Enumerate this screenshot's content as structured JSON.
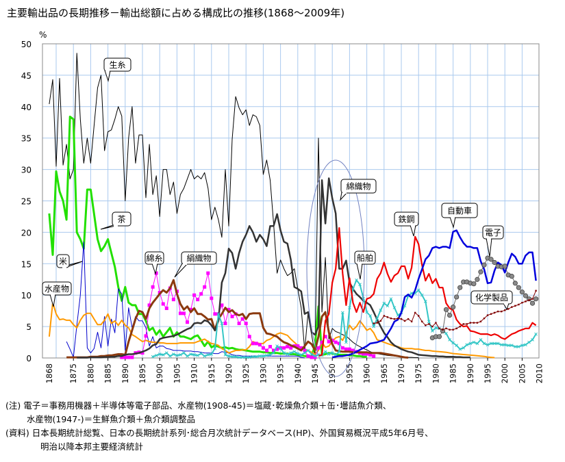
{
  "title": "主要輸出品の長期推移－輸出総額に占める構成比の推移(1868～2009年)",
  "notes": {
    "note_line1": "(注) 電子＝事務用機器＋半導体等電子部品、水産物(1908-45)＝塩蔵･乾燥魚介類＋缶･壜詰魚介類、",
    "note_line2": "水産物(1947-)＝生鮮魚介類＋魚介類調整品",
    "source_line1": "(資料) 日本長期統計総覧、日本の長期統計系列･総合月次統計データベース(HP)、外国貿易概況平成5年6月号、",
    "source_line2": "明治以降本邦主要経済統計"
  },
  "chart_data": {
    "type": "line",
    "title": "主要輸出品の長期推移－輸出総額に占める構成比の推移(1868～2009年)",
    "ylabel": "%",
    "xlabel": "",
    "ylim": [
      0,
      50
    ],
    "xlim": [
      1866,
      2010
    ],
    "yticks": [
      0,
      5,
      10,
      15,
      20,
      25,
      30,
      35,
      40,
      45,
      50
    ],
    "xtick_labels": [
      "1868",
      "1875",
      "1880",
      "1885",
      "1890",
      "1895",
      "1900",
      "1905",
      "1910",
      "1915",
      "1920",
      "1925",
      "1930",
      "1935",
      "1940",
      "1945",
      "1950",
      "1955",
      "1960",
      "1965",
      "1970",
      "1975",
      "1980",
      "1985",
      "1990",
      "1995",
      "2000",
      "2005",
      "2010"
    ],
    "grid": true,
    "legend": "callout labels on lines",
    "series": [
      {
        "name": "生糸",
        "color": "#000000",
        "start": 1868,
        "values": [
          40.4,
          44.3,
          30.5,
          44.5,
          30.7,
          34,
          28.5,
          30,
          48.5,
          38,
          31,
          35,
          31,
          37,
          43,
          45,
          33,
          36,
          36.3,
          38,
          40,
          38.5,
          25,
          35,
          40,
          31,
          35.5,
          35.5,
          25.5,
          34,
          26,
          29,
          22.5,
          30,
          30,
          26,
          28,
          23,
          26,
          27,
          28.5,
          30,
          28.5,
          29,
          28.5,
          29.5,
          27,
          22,
          24,
          22,
          19.2,
          30,
          21,
          34.8,
          41.6,
          39.8,
          38.7,
          39.5,
          37,
          38.7,
          38.4,
          37,
          29.2,
          31.5,
          28.3,
          21.4,
          13.5,
          15.6,
          14.2,
          13.1,
          13.5,
          14.2,
          11,
          8,
          1.2,
          7.3,
          3.7,
          0.5,
          35,
          7.3,
          16,
          3,
          4.7,
          4.2,
          4,
          3.7,
          3.5,
          3,
          2.5,
          2.1,
          1.8,
          1.5,
          1.3,
          1,
          0.8,
          0.7,
          0.6,
          0.5,
          0.4,
          0.35,
          0.3,
          0.25,
          0.2,
          0.15,
          0.1,
          0.1,
          0.05,
          0.05
        ]
      },
      {
        "name": "茶",
        "color": "#22e000",
        "start": 1868,
        "values": [
          23,
          16.4,
          29.7,
          26.5,
          25,
          22,
          38.4,
          38,
          20,
          18.9,
          17.4,
          26.8,
          26.8,
          22.9,
          18.9,
          17,
          17.8,
          18.9,
          16.7,
          14.5,
          11.3,
          9.1,
          11.3,
          8.8,
          8.4,
          8.4,
          7,
          7,
          5.9,
          4.4,
          4.8,
          3.7,
          4.4,
          3.4,
          4.1,
          4.8,
          3.4,
          4.1,
          3.4,
          3.4,
          3.2,
          3,
          3.4,
          3.6,
          2.8,
          1.9,
          2.6,
          1.7,
          2,
          1.8,
          1.6,
          1.7,
          1.5,
          1.6,
          1.4,
          1.3,
          1.3,
          1.2,
          1.1,
          1,
          1,
          1,
          0.9,
          0.9,
          0.8,
          0.8,
          0.8,
          0.7,
          0.7,
          0.7,
          0.6,
          0.6,
          0.5,
          0.4,
          0.3,
          0.3,
          0.3,
          2,
          8.2,
          0.5,
          0.6,
          0.8,
          0.7,
          0.6,
          0.5,
          0.5,
          0.5,
          0.4,
          0.4,
          0.3,
          0.3,
          0.2,
          0.2
        ]
      },
      {
        "name": "米",
        "color": "#0000cc",
        "start": 1873,
        "values": [
          2.6,
          1.4,
          0.1,
          5.2,
          10,
          18.5,
          1.6,
          0.8,
          1.5,
          4.1,
          1.6,
          6.6,
          1.9,
          6.2,
          4,
          11,
          10.2,
          1.2,
          8,
          4.8,
          6.6,
          5.9,
          5.9,
          4.8,
          1.9,
          3.4,
          1.6,
          1.9,
          1.9,
          1.5,
          1.4,
          1.2,
          1.2,
          1.2,
          1.1,
          1.1,
          1.1,
          1,
          1,
          0.9,
          0.8,
          0.8,
          0.8,
          0.7,
          0.7,
          1,
          0.9,
          0.8,
          0.5,
          0.4,
          0.4,
          0.3,
          0.3,
          0.3,
          0.3,
          0.3,
          0.3,
          0.3,
          0.3,
          0.3,
          0.3,
          0.3,
          0.3,
          0.3,
          0.3,
          0.3,
          0.3,
          0.3,
          0.1,
          0
        ]
      },
      {
        "name": "水産物",
        "color": "#ff9900",
        "start": 1868,
        "values": [
          3.4,
          8.8,
          7,
          6.1,
          6.2,
          6,
          6,
          5.3,
          4.8,
          6,
          6.8,
          7.1,
          7.1,
          6.2,
          5.3,
          5.3,
          6,
          7,
          5.5,
          5.9,
          5.2,
          6,
          5.2,
          4.8,
          3.7,
          3.4,
          3,
          2.6,
          2.8,
          2.6,
          2.5,
          2.5,
          2.4,
          2.4,
          2.3,
          2.3,
          2.3,
          2.3,
          2.4,
          2.4,
          2.4,
          2.4,
          2.4,
          2.6,
          2.8,
          3,
          2.6,
          2.3,
          2.2,
          2,
          1.5,
          1.2,
          0.8,
          1,
          1.2,
          1.2,
          1.3,
          1.3,
          1.8,
          2.6,
          2.4,
          2.3,
          2.3,
          2.8,
          3,
          3.4,
          3.8,
          4,
          3.8,
          3.6,
          3,
          2.5,
          2,
          1.6,
          1.3,
          1.2,
          0.9,
          0.6,
          1.2,
          2.5,
          1.7,
          1.9,
          2.6,
          3.2,
          3.4,
          2.8,
          4,
          5.2,
          4.5,
          5,
          5.9,
          5.2,
          4.4,
          4.7,
          4,
          2.9,
          2.7,
          2.5,
          2.3,
          2.1,
          1.9,
          1.8,
          1.6,
          1.5,
          1.5,
          1.5,
          1.4,
          1.4,
          1.3,
          1.2,
          1.2,
          1.1,
          1.05,
          1,
          0.95,
          0.9,
          0.8,
          0.7,
          0.65,
          0.6,
          0.55,
          0.5,
          0.45,
          0.4,
          0.35,
          0.3,
          0.25,
          0.15,
          0.1,
          0.05
        ]
      },
      {
        "name": "綿糸",
        "color": "#ff00ff",
        "marker": "square",
        "start": 1889,
        "values": [
          0.1,
          0.1,
          0.1,
          0.1,
          0.8,
          0.9,
          0.8,
          3.5,
          8.4,
          11.3,
          13.5,
          10.4,
          8.6,
          7.9,
          11.1,
          9.3,
          10.6,
          7.1,
          7.1,
          5.7,
          7.7,
          10,
          9.3,
          10.2,
          11.3,
          13.5,
          9.5,
          7,
          7,
          8.4,
          5.5,
          7.7,
          6.6,
          7,
          5.5,
          6.2,
          5.5,
          3.4,
          2.3,
          2.3,
          2.1,
          1.6,
          1.2,
          1.8,
          1.2,
          1.4,
          1.6,
          1.6,
          1.8,
          1.6,
          1.9,
          1.9,
          1.6,
          1.2,
          0.3,
          0.1,
          0.1,
          1.6,
          2.5,
          3.4,
          2.6,
          2.8,
          2.5,
          2.3,
          1.6,
          1.4,
          1.4,
          1.2,
          1,
          0.8,
          0.65,
          0.65,
          0.5,
          0.3
        ]
      },
      {
        "name": "絹織物",
        "color": "#8b3a0f",
        "start": 1873,
        "values": [
          0.1,
          0.1,
          0.1,
          0.1,
          0.1,
          0.1,
          0.1,
          0.2,
          0.2,
          0.2,
          0.3,
          0.3,
          0.4,
          0.4,
          0.5,
          0.6,
          0.6,
          0.5,
          2.6,
          4.4,
          6.2,
          7.5,
          7.3,
          6.2,
          7.9,
          8.8,
          9.5,
          10.2,
          10.8,
          10.4,
          11.1,
          12.4,
          10.2,
          8.6,
          7.7,
          8.2,
          7.3,
          7.9,
          7,
          7,
          6.6,
          6.1,
          6.2,
          4.4,
          6.2,
          7,
          8,
          7.3,
          7.6,
          7,
          6.8,
          7,
          6.2,
          7,
          7.1,
          7.1,
          7.1,
          4.8,
          3.9,
          3.8,
          3.6,
          3.4,
          2.9,
          2.5,
          2.3,
          2,
          1.8,
          1.5,
          1.2,
          1.9,
          2.6,
          2.2,
          1.2,
          3.4,
          6.6,
          7.3,
          4.1,
          2.2,
          1.2,
          1.1,
          1,
          1,
          1,
          0.9,
          0.9,
          0.9,
          0.9,
          0.9,
          0.8,
          0.8,
          0.8,
          0.8,
          0.7,
          0.6,
          0.5,
          0.4,
          0.3,
          0.2,
          0.1,
          0.05
        ]
      },
      {
        "name": "綿織物",
        "color": "#333333",
        "start": 1876,
        "values": [
          0.05,
          0.05,
          0.05,
          0.05,
          0.1,
          0.1,
          0.1,
          0.1,
          0.15,
          0.15,
          0.2,
          0.2,
          0.3,
          0.3,
          0.5,
          0.6,
          0.6,
          0.7,
          0.8,
          1,
          1.2,
          1.5,
          2,
          2.2,
          3,
          3.2,
          3.3,
          3.4,
          3.5,
          3.7,
          4,
          4.3,
          4.6,
          4.8,
          5.5,
          5.6,
          5.5,
          6,
          5.8,
          5.2,
          4.4,
          5.9,
          12,
          13.5,
          17.4,
          16.7,
          14.2,
          16.7,
          18.5,
          19.6,
          21,
          20,
          18.5,
          19.6,
          18.9,
          17.8,
          21,
          21,
          22.9,
          20.3,
          18.5,
          18.2,
          15.6,
          11.3,
          11,
          10.6,
          7,
          7.3,
          4.1,
          3.7,
          5,
          28.3,
          21.4,
          28.6,
          25.4,
          23,
          14.2,
          14.2,
          15.5,
          12,
          11,
          10.2,
          9.7,
          9.1,
          8.8,
          8.4,
          7.3,
          6.1,
          5,
          4,
          3.3,
          2.5,
          2,
          1.7,
          1.4,
          1.2,
          1,
          0.9,
          0.7,
          0.5,
          0.45,
          0.4,
          0.35,
          0.3,
          0.3,
          0.25,
          0.25,
          0.2,
          0.2,
          0.2,
          0.15,
          0.15,
          0.1,
          0.1,
          0.1
        ]
      },
      {
        "name": "船舶",
        "color": "#33c6c6",
        "marker": "x",
        "start": 1898,
        "values": [
          0.2,
          0.4,
          0.6,
          0.5,
          0.8,
          0.3,
          0.6,
          0.4,
          0.5,
          0.8,
          0.3,
          0.6,
          0.5,
          0.4,
          0.7,
          0.3,
          0.5,
          0.6,
          1.5,
          7,
          5.5,
          0.5,
          0.3,
          0.2,
          0.2,
          0.1,
          0.1,
          0.1,
          0.1,
          0.2,
          0.2,
          0.3,
          0.3,
          0.4,
          0.5,
          0.8,
          1.9,
          1.5,
          0.8,
          0.6,
          0.8,
          1,
          0.7,
          0.5,
          0.8,
          1.2,
          0.6,
          0.3,
          0.5,
          0.4,
          1,
          0.6,
          0.8,
          0.5,
          1,
          7.2,
          2.5,
          8,
          11,
          12.4,
          11.7,
          9.5,
          7.3,
          6.7,
          5,
          6.3,
          7.6,
          8.7,
          8.3,
          9.4,
          8,
          6.8,
          7.2,
          8.3,
          9.9,
          10.3,
          10.3,
          10.8,
          10,
          9,
          5.8,
          4.3,
          4.8,
          4.7,
          4.3,
          3.9,
          2.9,
          2.4,
          2,
          1.4,
          1.6,
          2.1,
          2.3,
          2.5,
          2.3,
          2.9,
          2.3,
          2.1,
          2.3,
          2.3,
          2.3,
          2.1,
          2.1,
          2,
          2,
          1.8,
          1.8,
          2,
          2.1,
          2.5,
          2.9,
          3.8
        ]
      },
      {
        "name": "鉄鋼",
        "color": "#ee0000",
        "start": 1946,
        "values": [
          0.3,
          0.5,
          5.9,
          7,
          12,
          14.2,
          20.7,
          13.5,
          8.4,
          12.7,
          8.8,
          7.3,
          8.8,
          7.3,
          9.4,
          9.6,
          10.2,
          12.6,
          13.5,
          15.2,
          13.4,
          12.1,
          13.1,
          13.5,
          14.6,
          14.6,
          12.6,
          14.4,
          19.3,
          18.1,
          14.8,
          12.3,
          13.4,
          11.9,
          12.6,
          11.2,
          11.2,
          8.7,
          7.9,
          7.6,
          6.1,
          5.4,
          5,
          5.1,
          4.3,
          4.2,
          4,
          3.8,
          3.8,
          3.8,
          3.6,
          3.8,
          3.6,
          3.2,
          3,
          3.4,
          3.8,
          4,
          4.3,
          4.5,
          4.7,
          4.7,
          5.6,
          5.2
        ]
      },
      {
        "name": "自動車",
        "color": "#0000dd",
        "start": 1950,
        "values": [
          0.1,
          0.2,
          0.3,
          0.3,
          0.4,
          0.5,
          0.7,
          1,
          1.3,
          1.6,
          1.9,
          2.3,
          2.4,
          2.5,
          2.7,
          2.9,
          3.8,
          4.7,
          5.8,
          6.1,
          7.2,
          9.7,
          10.1,
          9.6,
          10.8,
          12.6,
          14.1,
          15.7,
          16.3,
          17.5,
          17.7,
          17.5,
          17.7,
          17.7,
          17.5,
          20.1,
          20.3,
          19.2,
          18.3,
          17.7,
          17.7,
          17.5,
          17.5,
          15.4,
          14.1,
          11.9,
          12,
          13.9,
          15.2,
          14.8,
          13.6,
          15.2,
          16.6,
          16.1,
          15,
          15,
          16.3,
          16.8,
          16.8,
          12.3
        ]
      },
      {
        "name": "電子",
        "color": "#666666",
        "marker": "circle",
        "start": 1979,
        "values": [
          3.2,
          3.4,
          3.4,
          4.3,
          7.7,
          6.8,
          8.1,
          9.7,
          11.2,
          12.1,
          12.1,
          11.9,
          11.8,
          12.5,
          13.7,
          14.8,
          15.9,
          15.7,
          15.2,
          14.6,
          14.5,
          14.6,
          13.2,
          13,
          11.9,
          11.2,
          10.5,
          9.9,
          9.4,
          8.7,
          9.4
        ]
      },
      {
        "name": "化学製品",
        "color": "#800000",
        "marker": "dot",
        "start": 1962,
        "values": [
          5.5,
          5.6,
          5.9,
          6.7,
          6.5,
          6.3,
          6.2,
          6.3,
          6.2,
          5.9,
          6.2,
          5.8,
          7.2,
          6.7,
          5.8,
          5.2,
          5.4,
          5,
          5.6,
          4.7,
          4.5,
          4.7,
          4.5,
          4.5,
          4.7,
          5,
          5.4,
          5.4,
          5.6,
          5.6,
          5.6,
          5.8,
          6.3,
          6.8,
          7,
          7.2,
          7.4,
          7.4,
          7.6,
          7.8,
          8.1,
          8.3,
          8.5,
          8.8,
          9,
          9.2,
          9.4,
          10.7
        ]
      }
    ],
    "annotations": [
      "生糸",
      "茶",
      "米",
      "水産物",
      "綿糸",
      "絹織物",
      "綿織物",
      "船舶",
      "鉄鋼",
      "自動車",
      "電子",
      "化学製品"
    ]
  }
}
